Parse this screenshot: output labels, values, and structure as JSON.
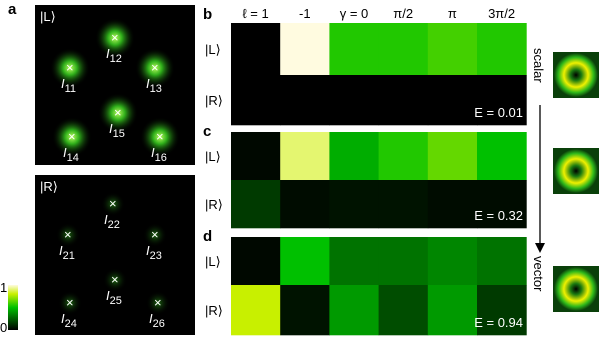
{
  "panel_a": {
    "label": "a",
    "images": [
      {
        "ket": "|L⟩",
        "spots": [
          {
            "letter": "I",
            "sub": "11"
          },
          {
            "letter": "I",
            "sub": "12"
          },
          {
            "letter": "I",
            "sub": "13"
          },
          {
            "letter": "I",
            "sub": "14"
          },
          {
            "letter": "I",
            "sub": "15"
          },
          {
            "letter": "I",
            "sub": "16"
          }
        ]
      },
      {
        "ket": "|R⟩",
        "spots": [
          {
            "letter": "I",
            "sub": "21"
          },
          {
            "letter": "I",
            "sub": "22"
          },
          {
            "letter": "I",
            "sub": "23"
          },
          {
            "letter": "I",
            "sub": "24"
          },
          {
            "letter": "I",
            "sub": "25"
          },
          {
            "letter": "I",
            "sub": "26"
          }
        ]
      }
    ],
    "colorbar_ticks": [
      1,
      0
    ]
  },
  "heatmap_columns": [
    "ℓ = 1",
    "-1",
    "γ = 0",
    "π/2",
    "π",
    "3π/2"
  ],
  "heatmaps": [
    {
      "label": "b",
      "rows": [
        {
          "ket": "|L⟩",
          "values": [
            0,
            1,
            0.55,
            0.55,
            0.6,
            0.55
          ]
        },
        {
          "ket": "|R⟩",
          "values": [
            0,
            0,
            0,
            0,
            0,
            0
          ]
        }
      ],
      "metric": "E = 0.01"
    },
    {
      "label": "c",
      "rows": [
        {
          "ket": "|L⟩",
          "values": [
            0.02,
            0.9,
            0.45,
            0.55,
            0.65,
            0.5
          ]
        },
        {
          "ket": "|R⟩",
          "values": [
            0.15,
            0.03,
            0.05,
            0.05,
            0.03,
            0.03
          ]
        }
      ],
      "metric": "E = 0.32"
    },
    {
      "label": "d",
      "rows": [
        {
          "ket": "|L⟩",
          "values": [
            0.02,
            0.5,
            0.3,
            0.3,
            0.35,
            0.3
          ]
        },
        {
          "ket": "|R⟩",
          "values": [
            0.8,
            0.05,
            0.4,
            0.2,
            0.4,
            0.15
          ]
        }
      ],
      "metric": "E = 0.94"
    }
  ],
  "side": {
    "top": "scalar",
    "bottom": "vector"
  }
}
